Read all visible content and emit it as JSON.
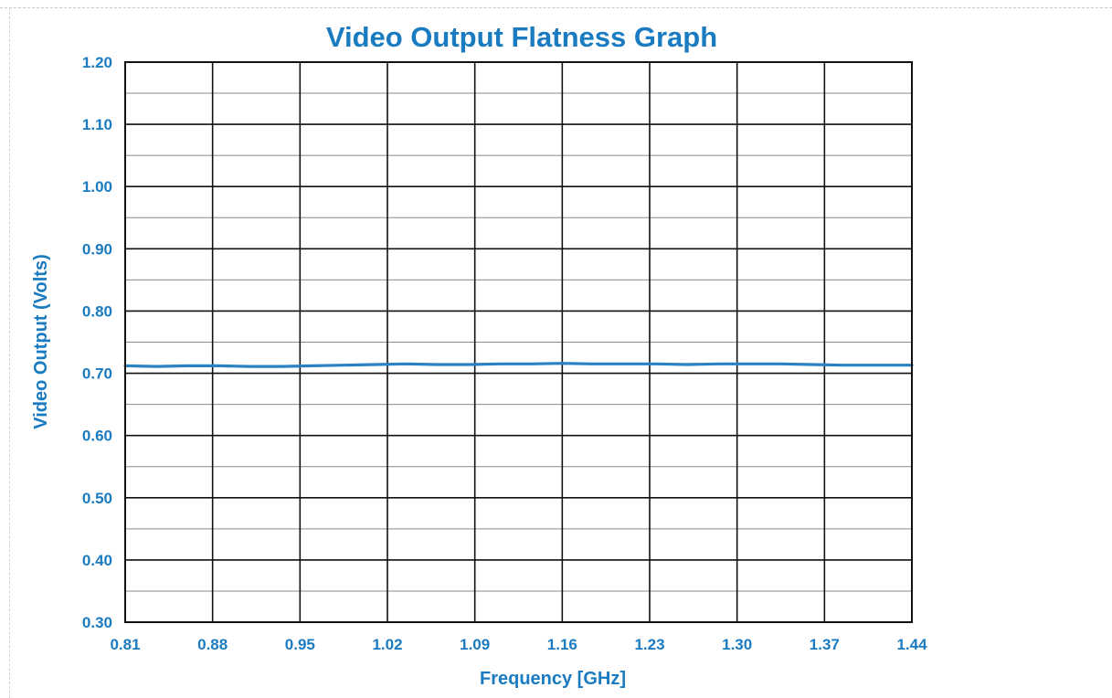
{
  "colors": {
    "text": "#1a7bc1",
    "line": "#2a82c4",
    "grid_major": "#111111",
    "grid_minor": "#8a8a8a",
    "plot_border": "#111111"
  },
  "chart_data": {
    "type": "line",
    "title": "Video Output Flatness Graph",
    "xlabel": "Frequency [GHz]",
    "ylabel": "Video Output (Volts)",
    "xlim": [
      0.81,
      1.44
    ],
    "ylim": [
      0.3,
      1.2
    ],
    "x_ticks": [
      0.81,
      0.88,
      0.95,
      1.02,
      1.09,
      1.16,
      1.23,
      1.3,
      1.37,
      1.44
    ],
    "x_tick_labels": [
      "0.81",
      "0.88",
      "0.95",
      "1.02",
      "1.09",
      "1.16",
      "1.23",
      "1.30",
      "1.37",
      "1.44"
    ],
    "y_ticks": [
      0.3,
      0.4,
      0.5,
      0.6,
      0.7,
      0.8,
      0.9,
      1.0,
      1.1,
      1.2
    ],
    "y_tick_labels": [
      "0.30",
      "0.40",
      "0.50",
      "0.60",
      "0.70",
      "0.80",
      "0.90",
      "1.00",
      "1.10",
      "1.20"
    ],
    "grid": true,
    "minor_y_grid": true,
    "series": [
      {
        "x": [
          0.81,
          0.835,
          0.86,
          0.885,
          0.91,
          0.935,
          0.96,
          0.985,
          1.01,
          1.035,
          1.06,
          1.085,
          1.11,
          1.135,
          1.16,
          1.185,
          1.21,
          1.235,
          1.26,
          1.285,
          1.31,
          1.335,
          1.36,
          1.385,
          1.41,
          1.44
        ],
        "y": [
          0.712,
          0.711,
          0.712,
          0.712,
          0.711,
          0.711,
          0.712,
          0.713,
          0.714,
          0.715,
          0.714,
          0.714,
          0.715,
          0.715,
          0.716,
          0.715,
          0.715,
          0.715,
          0.714,
          0.715,
          0.715,
          0.715,
          0.714,
          0.713,
          0.713,
          0.713
        ]
      }
    ]
  }
}
